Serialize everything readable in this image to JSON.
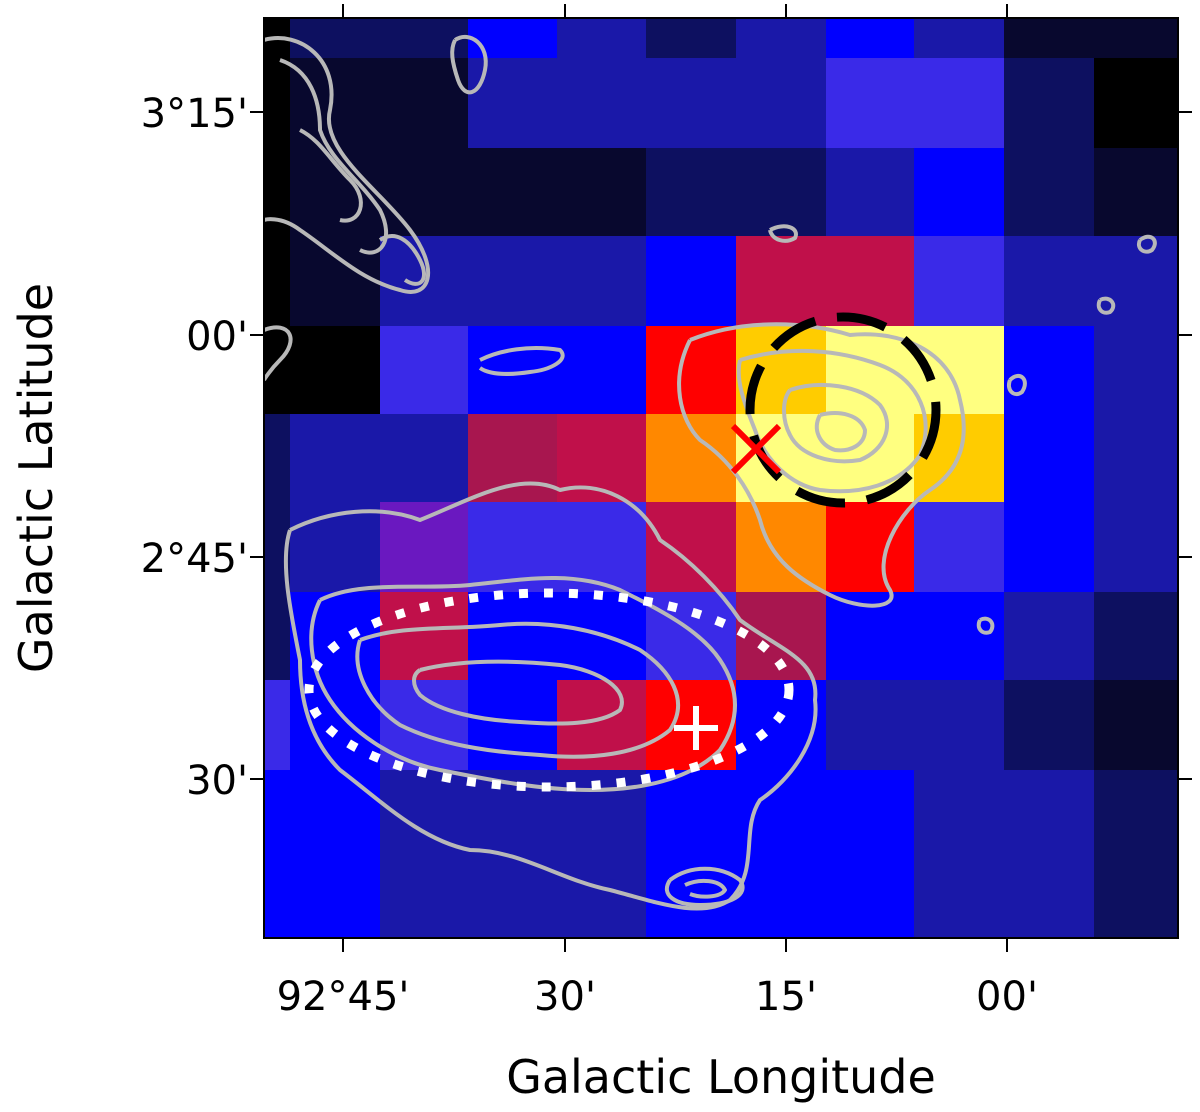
{
  "figure": {
    "xlabel": "Galactic Longitude",
    "ylabel": "Galactic Latitude",
    "x_ticks": [
      "92°45'",
      "30'",
      "15'",
      "00'"
    ],
    "y_ticks": [
      "3°15'",
      "00'",
      "2°45'",
      "30'"
    ]
  },
  "colormap": [
    "#000000",
    "#08082e",
    "#0d1060",
    "#1a18a8",
    "#0000ff",
    "#3a2ae8",
    "#6a18c0",
    "#a8164f",
    "#c0104a",
    "#ff0000",
    "#ff8800",
    "#ffcc00",
    "#ffff80"
  ],
  "heatmap": {
    "rows": 10,
    "cols": 11,
    "levels": [
      [
        0,
        2,
        2,
        4,
        3,
        2,
        3,
        4,
        3,
        1,
        1
      ],
      [
        0,
        1,
        1,
        3,
        3,
        3,
        3,
        5,
        5,
        2,
        0
      ],
      [
        0,
        1,
        1,
        1,
        1,
        2,
        2,
        3,
        4,
        2,
        1
      ],
      [
        0,
        1,
        3,
        3,
        3,
        4,
        8,
        8,
        5,
        3,
        3
      ],
      [
        0,
        0,
        5,
        4,
        4,
        9,
        11,
        12,
        12,
        4,
        3
      ],
      [
        2,
        3,
        3,
        7,
        8,
        10,
        12,
        12,
        11,
        4,
        3
      ],
      [
        2,
        3,
        6,
        5,
        5,
        8,
        10,
        9,
        5,
        4,
        3
      ],
      [
        2,
        4,
        8,
        4,
        4,
        5,
        7,
        4,
        4,
        3,
        2
      ],
      [
        5,
        4,
        5,
        4,
        8,
        9,
        4,
        3,
        3,
        2,
        1
      ],
      [
        4,
        4,
        3,
        3,
        3,
        4,
        4,
        4,
        3,
        3,
        2
      ]
    ]
  },
  "markers": {
    "dashed_circle_color": "#000000",
    "dotted_ellipse_color": "#ffffff",
    "x_marker_color": "#ff0000",
    "plus_marker_color": "#ffffff",
    "contour_color": "#b8b8b8"
  }
}
